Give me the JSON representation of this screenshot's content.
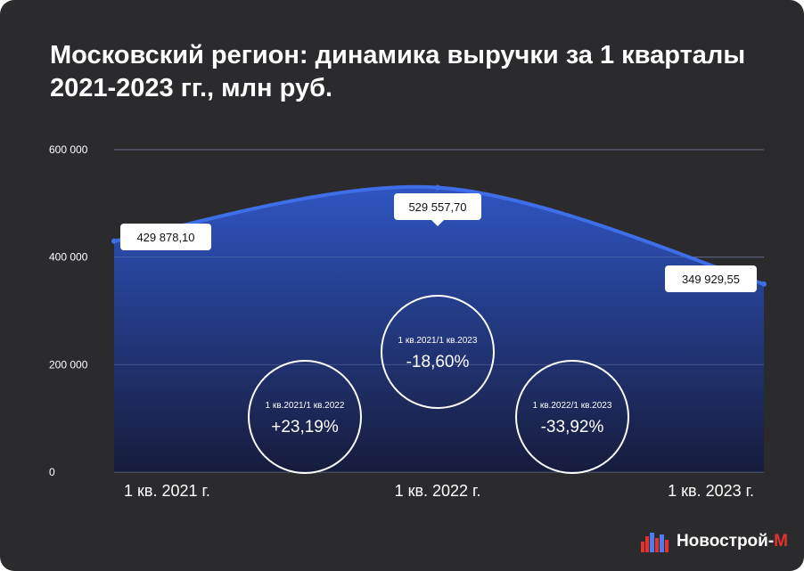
{
  "title_line1": "Московский регион: динамика выручки за 1 кварталы",
  "title_line2": "2021-2023 гг., млн руб.",
  "chart_data": {
    "type": "area",
    "categories": [
      "1 кв. 2021 г.",
      "1 кв. 2022 г.",
      "1 кв. 2023 г."
    ],
    "values": [
      429878.1,
      529557.7,
      349929.55
    ],
    "value_labels": [
      "429 878,10",
      "529 557,70",
      "349 929,55"
    ],
    "ylim": [
      0,
      600000
    ],
    "yticks": [
      0,
      200000,
      400000,
      600000
    ],
    "ytick_labels": [
      "0",
      "200 000",
      "400 000",
      "600 000"
    ],
    "grid": true,
    "line_color": "#3e6fe8",
    "annotations": [
      {
        "label": "1 кв.2021/1 кв.2022",
        "value": "+23,19%"
      },
      {
        "label": "1 кв.2021/1 кв.2023",
        "value": "-18,60%"
      },
      {
        "label": "1 кв.2022/1 кв.2023",
        "value": "-33,92%"
      }
    ]
  },
  "brand": {
    "name": "Новострой-",
    "accent": "М",
    "accent_color": "#e5322d"
  },
  "colors": {
    "background": "#2b2b2d",
    "area_top": "#2f57c9",
    "area_bottom": "#17204a"
  }
}
